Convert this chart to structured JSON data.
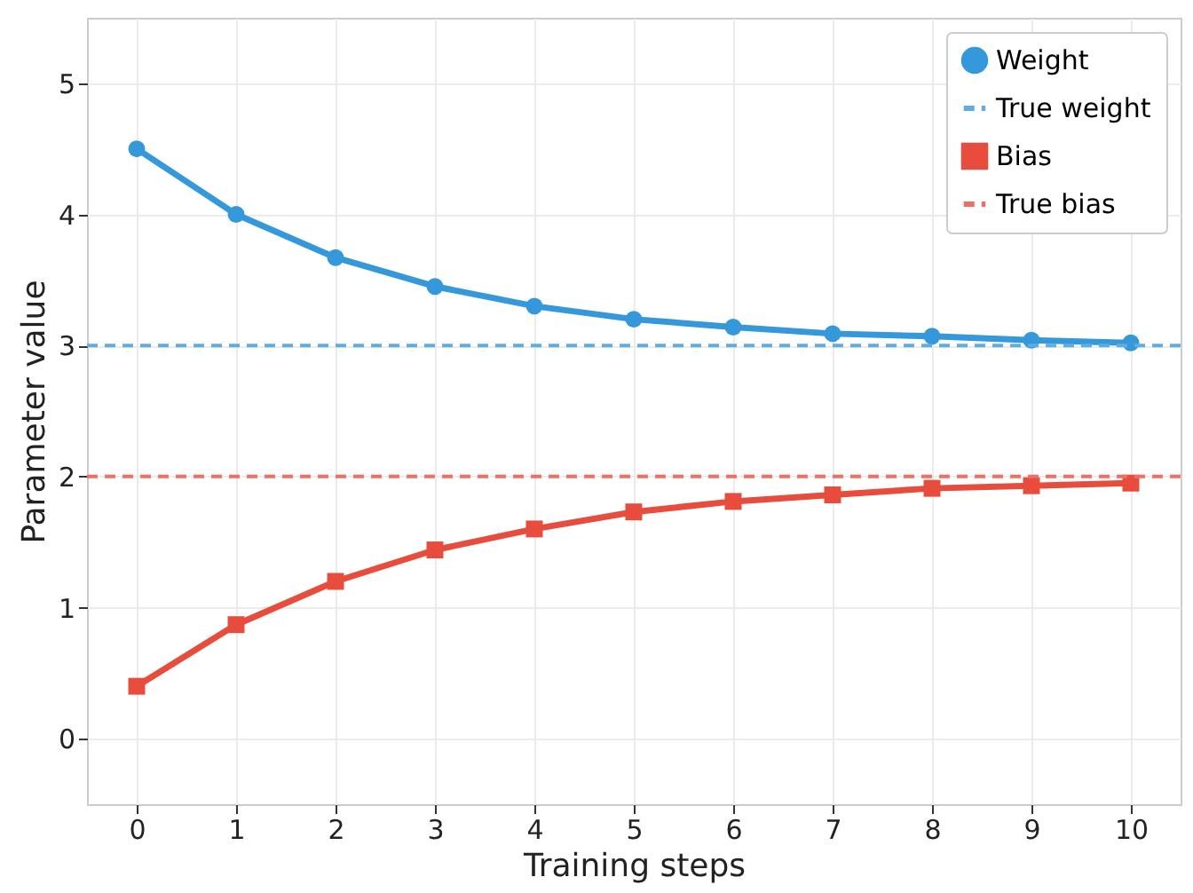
{
  "chart_data": {
    "type": "line",
    "xlabel": "Training steps",
    "ylabel": "Parameter value",
    "x": [
      0,
      1,
      2,
      3,
      4,
      5,
      6,
      7,
      8,
      9,
      10
    ],
    "series": [
      {
        "name": "Weight",
        "color": "#3498db",
        "marker": "circle",
        "line_style": "solid",
        "values": [
          4.5,
          4.0,
          3.67,
          3.45,
          3.3,
          3.2,
          3.14,
          3.09,
          3.07,
          3.04,
          3.02
        ]
      },
      {
        "name": "Bias",
        "color": "#e74c3c",
        "marker": "square",
        "line_style": "solid",
        "values": [
          0.4,
          0.87,
          1.2,
          1.44,
          1.6,
          1.73,
          1.81,
          1.86,
          1.91,
          1.93,
          1.95
        ]
      }
    ],
    "ref_lines": [
      {
        "axis": "y",
        "value": 3,
        "label": "True weight",
        "color": "#5dade2",
        "line_style": "dashed"
      },
      {
        "axis": "y",
        "value": 2,
        "label": "True bias",
        "color": "#ec7063",
        "line_style": "dashed"
      }
    ],
    "xlim": [
      -0.5,
      10.5
    ],
    "xticks": [
      0,
      1,
      2,
      3,
      4,
      5,
      6,
      7,
      8,
      9,
      10
    ],
    "ylim": [
      -0.5,
      5.5
    ],
    "yticks": [
      0,
      1,
      2,
      3,
      4,
      5
    ],
    "grid": true,
    "legend": "top right"
  }
}
